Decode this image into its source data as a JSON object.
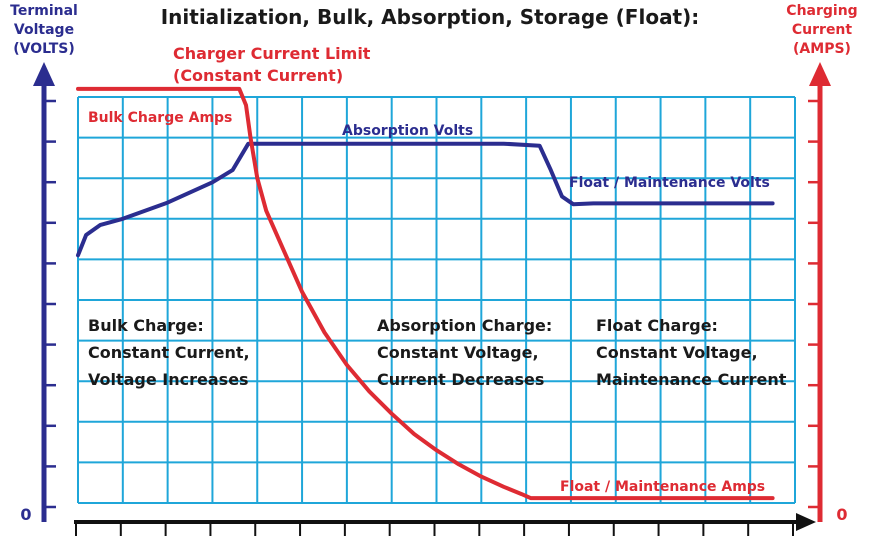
{
  "chart_data": {
    "type": "line",
    "title": "Initialization, Bulk, Absorption, Storage (Float):",
    "y_left_label": [
      "Terminal",
      "Voltage",
      "(VOLTS)"
    ],
    "y_right_label": [
      "Charging",
      "Current",
      "(AMPS)"
    ],
    "y_left_zero": "0",
    "y_right_zero": "0",
    "grid": true,
    "x_range": [
      0,
      16
    ],
    "y_left_range": [
      0,
      10
    ],
    "y_right_range": [
      0,
      10
    ],
    "series": [
      {
        "name": "Absorption Volts",
        "axis": "left",
        "color": "#2b2d8f",
        "x": [
          0,
          0.18,
          0.5,
          1.0,
          2.0,
          3.0,
          3.45,
          3.8,
          4.6,
          6.0,
          8.0,
          9.5,
          10.3,
          10.55,
          10.8,
          11.05,
          11.5,
          12.5,
          14.0,
          15.5
        ],
        "y": [
          6.1,
          6.6,
          6.85,
          7.0,
          7.4,
          7.9,
          8.2,
          8.85,
          8.85,
          8.85,
          8.85,
          8.85,
          8.8,
          8.2,
          7.55,
          7.36,
          7.38,
          7.38,
          7.38,
          7.38
        ]
      },
      {
        "name": "Bulk Charge Amps",
        "axis": "right",
        "color": "#de2b33",
        "x": [
          0,
          1.5,
          2.5,
          3.6,
          3.75,
          3.85,
          4.0,
          4.2,
          4.6,
          5.0,
          5.5,
          6.0,
          6.5,
          7.0,
          7.5,
          8.0,
          8.5,
          9.0,
          9.5,
          9.9,
          10.1,
          12.0,
          14.0,
          15.5
        ],
        "y": [
          10.2,
          10.2,
          10.2,
          10.2,
          9.8,
          9.0,
          8.0,
          7.2,
          6.2,
          5.2,
          4.2,
          3.4,
          2.75,
          2.2,
          1.7,
          1.3,
          0.95,
          0.65,
          0.4,
          0.22,
          0.12,
          0.12,
          0.12,
          0.12
        ]
      }
    ],
    "annotations": [
      {
        "id": "charger-limit",
        "lines": [
          "Charger Current Limit",
          "(Constant Current)"
        ],
        "color": "#de2b33"
      },
      {
        "id": "bulk-amps",
        "lines": [
          "Bulk Charge Amps"
        ],
        "color": "#de2b33"
      },
      {
        "id": "absorption-volts",
        "lines": [
          "Absorption Volts"
        ],
        "color": "#2b2d8f"
      },
      {
        "id": "float-volts",
        "lines": [
          "Float / Maintenance Volts"
        ],
        "color": "#2b2d8f"
      },
      {
        "id": "float-amps",
        "lines": [
          "Float / Maintenance Amps"
        ],
        "color": "#de2b33"
      },
      {
        "id": "bulk-charge",
        "lines": [
          "Bulk Charge:",
          "Constant Current,",
          "Voltage Increases"
        ],
        "color": "#1a1a1a"
      },
      {
        "id": "absorption-charge",
        "lines": [
          "Absorption Charge:",
          "Constant Voltage,",
          "Current Decreases"
        ],
        "color": "#1a1a1a"
      },
      {
        "id": "float-charge",
        "lines": [
          "Float Charge:",
          "Constant Voltage,",
          "Maintenance Current"
        ],
        "color": "#1a1a1a"
      }
    ],
    "colors": {
      "voltage": "#2b2d8f",
      "current": "#de2b33",
      "grid": "#1fa6d9",
      "axis": "#111111",
      "text": "#1a1a1a"
    }
  }
}
